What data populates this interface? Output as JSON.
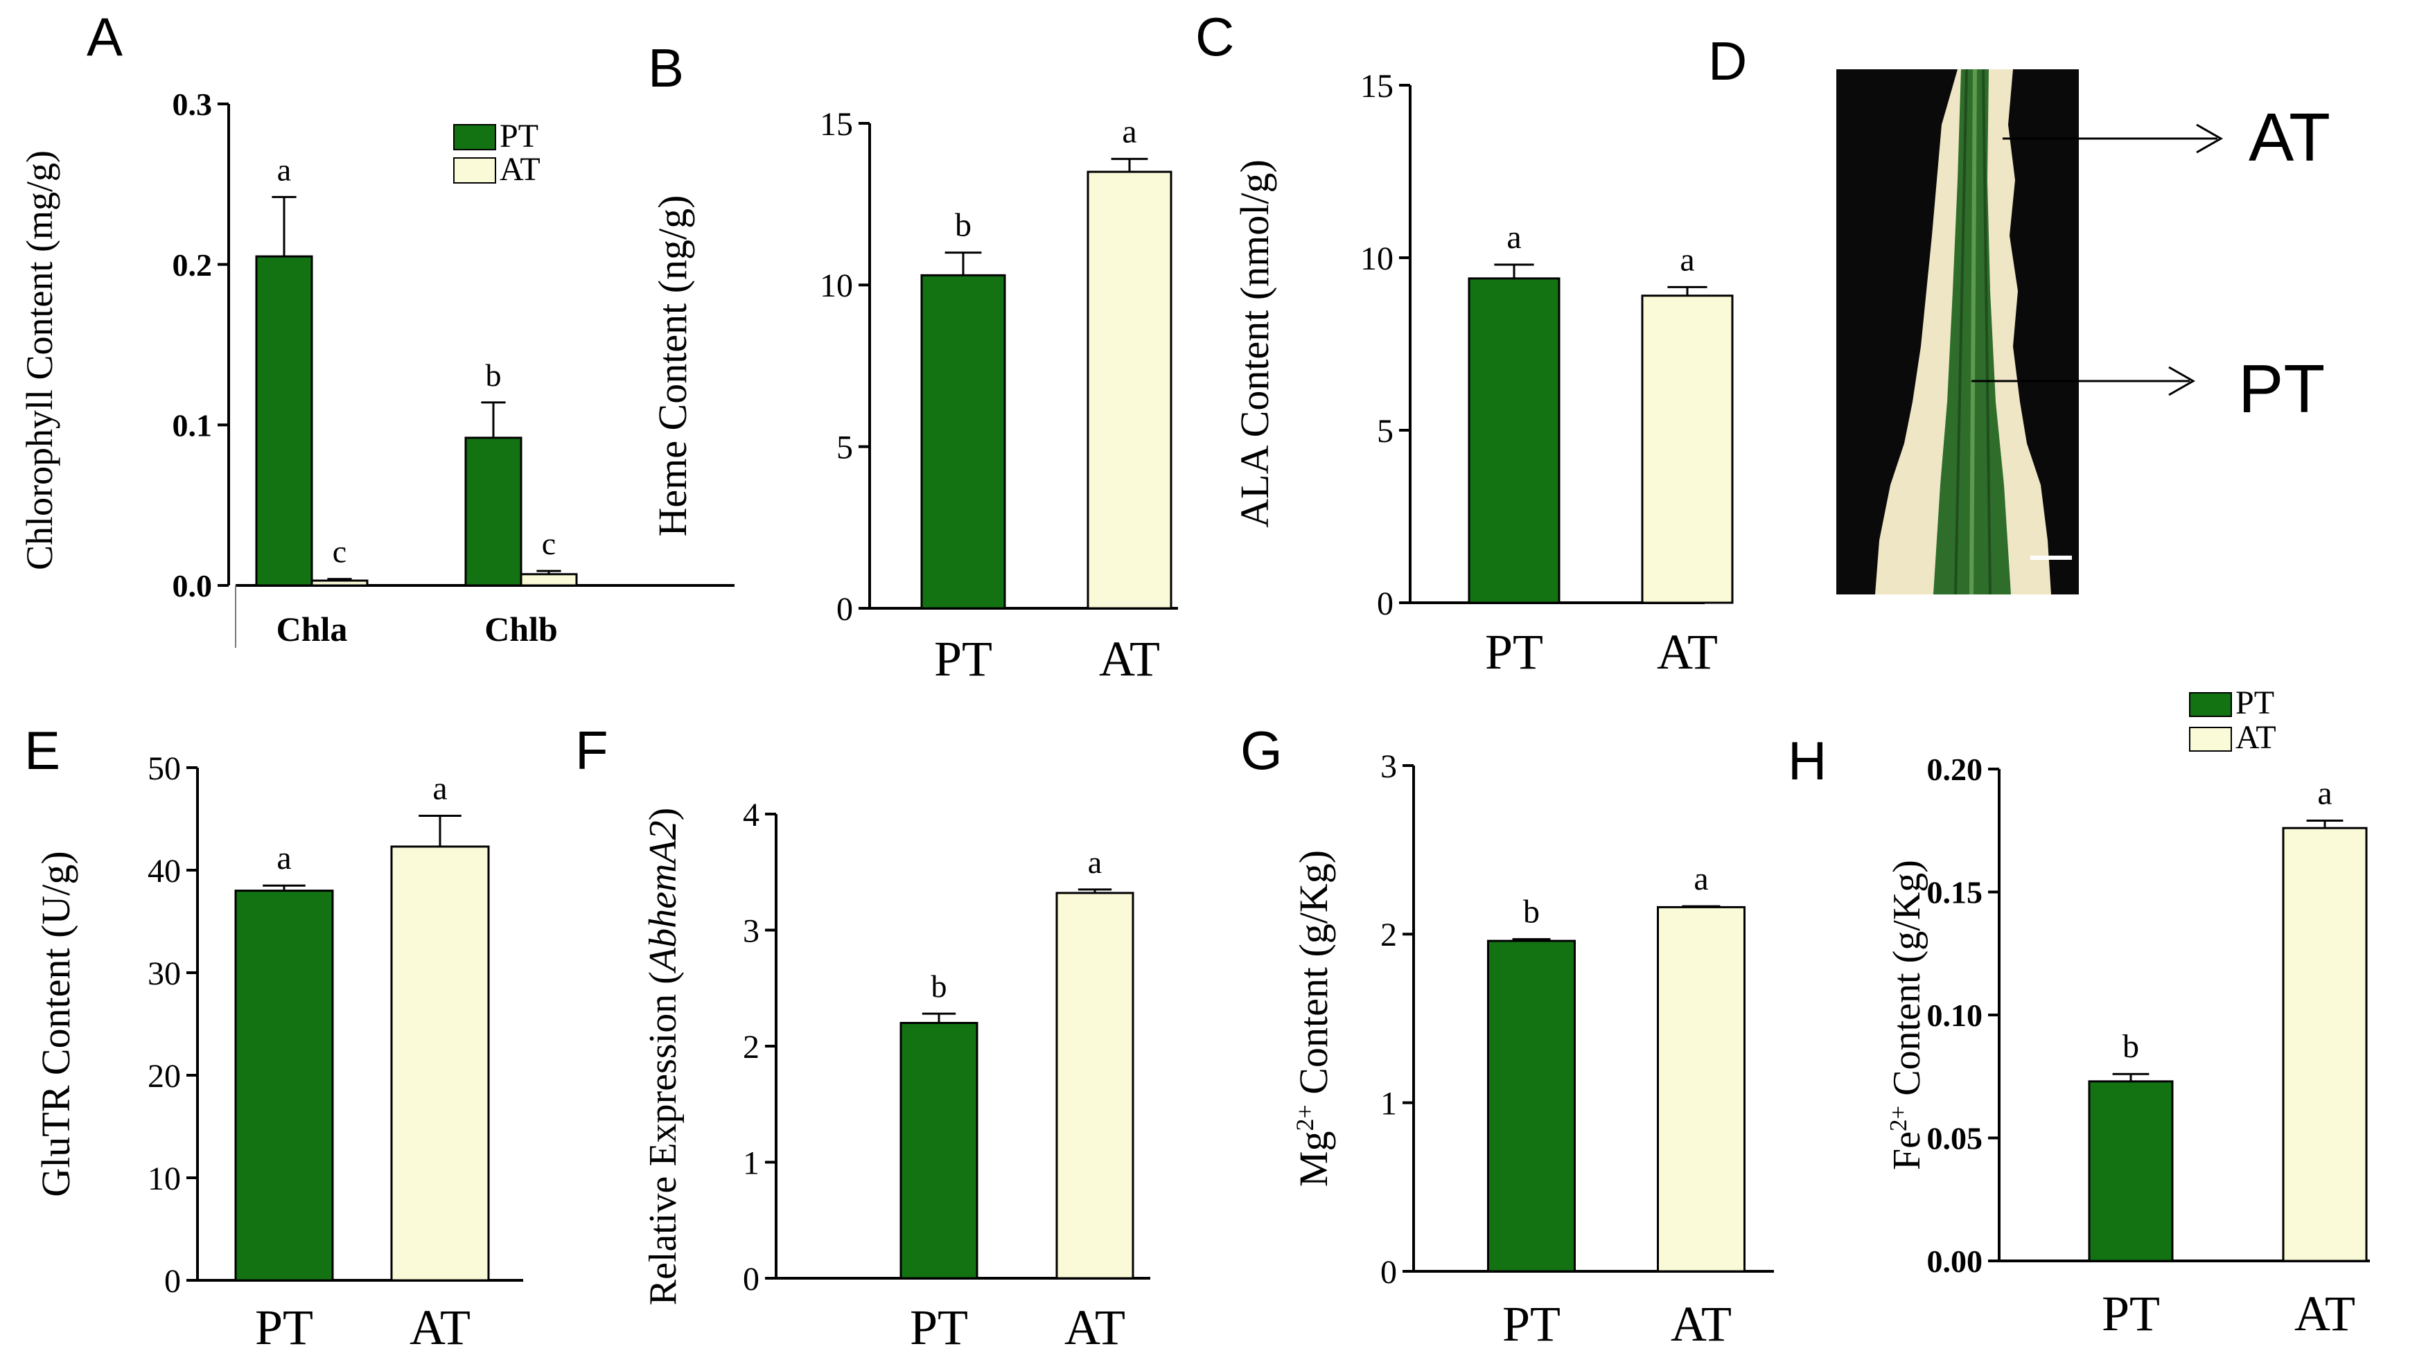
{
  "colors": {
    "pt": "#137313",
    "at": "#fbfad8",
    "axis": "#000000",
    "photo_bg": "#0a0a0a",
    "leaf_edge": "#efe6c6",
    "leaf_green": "#2f6d2b"
  },
  "photo": {
    "panel": "D",
    "labels": [
      "AT",
      "PT"
    ]
  },
  "chart_data": [
    {
      "panel": "A",
      "type": "bar",
      "ylabel": "Chlorophyll Content (mg/g)",
      "categories": [
        "Chla",
        "Chlb"
      ],
      "ylim": [
        0,
        0.3
      ],
      "yticks": [
        0.0,
        0.1,
        0.2,
        0.3
      ],
      "ytick_labels": [
        "0.0",
        "0.1",
        "0.2",
        "0.3"
      ],
      "legend": {
        "position": "top-right",
        "entries": [
          "PT",
          "AT"
        ]
      },
      "series": [
        {
          "name": "PT",
          "values": [
            0.205,
            0.092
          ],
          "errors": [
            0.037,
            0.022
          ],
          "letters": [
            "a",
            "b"
          ]
        },
        {
          "name": "AT",
          "values": [
            0.003,
            0.007
          ],
          "errors": [
            0.001,
            0.002
          ],
          "letters": [
            "c",
            "c"
          ]
        }
      ]
    },
    {
      "panel": "B",
      "type": "bar",
      "ylabel": "Heme Content (ng/g)",
      "categories": [
        "PT",
        "AT"
      ],
      "ylim": [
        0,
        15
      ],
      "yticks": [
        0,
        5,
        10,
        15
      ],
      "ytick_labels": [
        "0",
        "5",
        "10",
        "15"
      ],
      "values": [
        10.3,
        13.5
      ],
      "errors": [
        0.7,
        0.4
      ],
      "letters": [
        "b",
        "a"
      ]
    },
    {
      "panel": "C",
      "type": "bar",
      "ylabel": "ALA Content (nmol/g)",
      "categories": [
        "PT",
        "AT"
      ],
      "ylim": [
        0,
        15
      ],
      "yticks": [
        0,
        5,
        10,
        15
      ],
      "ytick_labels": [
        "0",
        "5",
        "10",
        "15"
      ],
      "values": [
        9.4,
        8.9
      ],
      "errors": [
        0.4,
        0.25
      ],
      "letters": [
        "a",
        "a"
      ]
    },
    {
      "panel": "E",
      "type": "bar",
      "ylabel": "GluTR Content (U/g)",
      "categories": [
        "PT",
        "AT"
      ],
      "ylim": [
        0,
        50
      ],
      "yticks": [
        0,
        10,
        20,
        30,
        40,
        50
      ],
      "ytick_labels": [
        "0",
        "10",
        "20",
        "30",
        "40",
        "50"
      ],
      "values": [
        38.0,
        42.3
      ],
      "errors": [
        0.5,
        3.0
      ],
      "letters": [
        "a",
        "a"
      ]
    },
    {
      "panel": "F",
      "type": "bar",
      "ylabel_prefix": "Relative Expression (",
      "ylabel_italic": "AbhemA2",
      "ylabel_suffix": ")",
      "categories": [
        "PT",
        "AT"
      ],
      "ylim": [
        0,
        4
      ],
      "yticks": [
        0,
        1,
        2,
        3,
        4
      ],
      "ytick_labels": [
        "0",
        "1",
        "2",
        "3",
        "4"
      ],
      "values": [
        2.2,
        3.32
      ],
      "errors": [
        0.08,
        0.03
      ],
      "letters": [
        "b",
        "a"
      ]
    },
    {
      "panel": "G",
      "type": "bar",
      "ylabel_prefix": "Mg",
      "ylabel_sup": "2+",
      "ylabel_suffix": " Content (g/Kg)",
      "categories": [
        "PT",
        "AT"
      ],
      "ylim": [
        0,
        3
      ],
      "yticks": [
        0,
        1,
        2,
        3
      ],
      "ytick_labels": [
        "0",
        "1",
        "2",
        "3"
      ],
      "values": [
        1.96,
        2.16
      ],
      "errors": [
        0.01,
        0.005
      ],
      "letters": [
        "b",
        "a"
      ]
    },
    {
      "panel": "H",
      "type": "bar",
      "ylabel_prefix": "Fe",
      "ylabel_sup": "2+",
      "ylabel_suffix": " Content (g/Kg)",
      "categories": [
        "PT",
        "AT"
      ],
      "ylim": [
        0,
        0.2
      ],
      "yticks": [
        0,
        0.05,
        0.1,
        0.15,
        0.2
      ],
      "ytick_labels": [
        "0.00",
        "0.05",
        "0.10",
        "0.15",
        "0.20"
      ],
      "legend": {
        "position": "top",
        "entries": [
          "PT",
          "AT"
        ]
      },
      "values": [
        0.073,
        0.176
      ],
      "errors": [
        0.003,
        0.003
      ],
      "letters": [
        "b",
        "a"
      ]
    }
  ]
}
